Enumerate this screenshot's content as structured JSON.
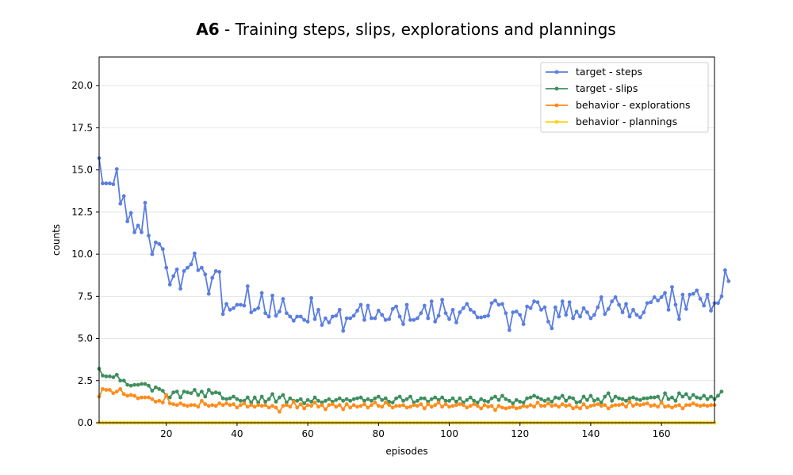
{
  "chart_data": {
    "type": "line",
    "title_bold": "A6",
    "title_rest": " - Training steps, slips, explorations and plannings",
    "xlabel": "episodes",
    "ylabel": "counts",
    "xlim": [
      1,
      175
    ],
    "ylim": [
      0,
      21.7
    ],
    "xticks": [
      20,
      40,
      60,
      80,
      100,
      120,
      140,
      160
    ],
    "yticks": [
      0,
      2.5,
      5,
      7.5,
      10,
      12.5,
      15,
      17.5,
      20
    ],
    "ytick_labels": [
      "0.0",
      "2.5",
      "5.0",
      "7.5",
      "10.0",
      "12.5",
      "15.0",
      "17.5",
      "20.0"
    ],
    "grid": "horizontal",
    "legend_position": "upper-right",
    "series": [
      {
        "name": "target - steps",
        "color": "#5b7ee0",
        "values": [
          15.7,
          14.2,
          14.2,
          14.2,
          14.15,
          15.05,
          13.0,
          13.45,
          11.95,
          12.45,
          11.3,
          11.7,
          11.3,
          13.05,
          11.1,
          10.0,
          10.7,
          10.6,
          10.3,
          9.2,
          8.2,
          8.7,
          9.1,
          7.95,
          9.0,
          9.2,
          9.4,
          10.05,
          9.05,
          9.2,
          8.8,
          7.65,
          8.6,
          9.0,
          8.95,
          6.45,
          7.05,
          6.7,
          6.8,
          7.0,
          7.0,
          6.95,
          8.1,
          6.55,
          6.7,
          6.8,
          7.7,
          6.5,
          6.3,
          7.55,
          6.35,
          6.6,
          7.35,
          6.5,
          6.3,
          6.05,
          6.3,
          6.3,
          6.1,
          6.0,
          7.4,
          6.15,
          6.7,
          5.8,
          6.2,
          5.95,
          6.3,
          6.35,
          6.7,
          5.45,
          6.2,
          6.2,
          6.35,
          6.65,
          7.0,
          6.1,
          6.95,
          6.2,
          6.2,
          6.65,
          6.4,
          6.1,
          6.15,
          6.75,
          6.9,
          6.3,
          5.85,
          7.0,
          6.1,
          6.1,
          6.2,
          6.5,
          6.95,
          6.2,
          7.2,
          6.0,
          6.35,
          7.3,
          6.5,
          6.15,
          6.7,
          5.95,
          6.55,
          6.8,
          7.05,
          6.7,
          6.55,
          6.25,
          6.25,
          6.3,
          6.35,
          7.1,
          7.25,
          7.0,
          7.05,
          6.5,
          5.5,
          6.55,
          6.6,
          6.4,
          5.85,
          6.9,
          6.8,
          7.2,
          7.15,
          6.7,
          6.85,
          6.0,
          5.6,
          6.85,
          6.3,
          7.2,
          6.4,
          7.15,
          6.2,
          6.6,
          6.3,
          6.8,
          6.55,
          6.2,
          6.4,
          6.85,
          7.45,
          6.45,
          6.75,
          7.2,
          7.45,
          7.0,
          6.55,
          7.05,
          6.3,
          6.7,
          6.4,
          6.25,
          6.55,
          7.1,
          7.15,
          7.45,
          7.25,
          7.45,
          7.7,
          6.7,
          8.05,
          7.0,
          6.15,
          7.6,
          6.75,
          7.6,
          7.65,
          7.85,
          7.35,
          6.95,
          7.6,
          6.65,
          7.1,
          7.1,
          7.5,
          9.05,
          8.4
        ]
      },
      {
        "name": "target - slips",
        "color": "#3e8f5e",
        "values": [
          3.2,
          2.8,
          2.75,
          2.75,
          2.7,
          2.85,
          2.5,
          2.5,
          2.25,
          2.2,
          2.25,
          2.25,
          2.3,
          2.3,
          2.2,
          1.9,
          2.1,
          2.0,
          1.9,
          1.6,
          1.5,
          1.8,
          1.85,
          1.5,
          1.85,
          1.8,
          1.75,
          1.95,
          1.65,
          1.85,
          1.55,
          1.95,
          1.75,
          1.8,
          1.75,
          1.45,
          1.4,
          1.45,
          1.55,
          1.4,
          1.3,
          1.3,
          1.5,
          1.2,
          1.5,
          1.2,
          1.55,
          1.25,
          1.4,
          1.7,
          1.25,
          1.5,
          1.65,
          1.2,
          1.45,
          1.3,
          1.3,
          1.4,
          1.15,
          1.35,
          1.25,
          1.5,
          1.3,
          1.2,
          1.3,
          1.4,
          1.25,
          1.35,
          1.45,
          1.3,
          1.4,
          1.3,
          1.4,
          1.45,
          1.5,
          1.3,
          1.4,
          1.3,
          1.45,
          1.55,
          1.35,
          1.45,
          1.25,
          1.2,
          1.45,
          1.55,
          1.3,
          1.4,
          1.55,
          1.2,
          1.3,
          1.45,
          1.45,
          1.25,
          1.4,
          1.5,
          1.35,
          1.5,
          1.3,
          1.3,
          1.45,
          1.25,
          1.45,
          1.2,
          1.35,
          1.5,
          1.3,
          1.2,
          1.4,
          1.3,
          1.25,
          1.45,
          1.55,
          1.35,
          1.6,
          1.4,
          1.3,
          1.15,
          1.35,
          1.25,
          1.2,
          1.45,
          1.5,
          1.6,
          1.5,
          1.4,
          1.3,
          1.4,
          1.25,
          1.5,
          1.45,
          1.6,
          1.3,
          1.5,
          1.45,
          1.2,
          1.25,
          1.55,
          1.35,
          1.6,
          1.3,
          1.4,
          1.2,
          1.55,
          1.75,
          1.3,
          1.55,
          1.45,
          1.4,
          1.3,
          1.45,
          1.5,
          1.4,
          1.35,
          1.45,
          1.45,
          1.5,
          1.5,
          1.55,
          1.2,
          1.75,
          1.4,
          1.5,
          1.3,
          1.75,
          1.55,
          1.7,
          1.45,
          1.65,
          1.5,
          1.45,
          1.6,
          1.4,
          1.55,
          1.4,
          1.6,
          1.85
        ]
      },
      {
        "name": "behavior - explorations",
        "color": "#ff8c1a",
        "values": [
          1.55,
          2.0,
          1.95,
          1.95,
          1.75,
          1.85,
          2.0,
          1.7,
          1.6,
          1.65,
          1.6,
          1.45,
          1.5,
          1.5,
          1.5,
          1.4,
          1.25,
          1.3,
          1.2,
          1.65,
          1.15,
          1.1,
          1.05,
          1.15,
          1.05,
          1.0,
          1.05,
          1.05,
          0.95,
          1.3,
          1.1,
          1.0,
          1.05,
          1.0,
          1.15,
          1.05,
          1.15,
          1.05,
          1.1,
          0.9,
          1.05,
          1.15,
          0.95,
          1.05,
          0.95,
          1.05,
          1.0,
          1.05,
          0.9,
          1.0,
          0.9,
          0.65,
          1.0,
          1.05,
          0.95,
          1.25,
          0.9,
          1.1,
          0.85,
          1.05,
          1.0,
          1.2,
          0.95,
          1.05,
          0.8,
          1.05,
          1.1,
          0.95,
          1.05,
          0.8,
          1.1,
          0.9,
          1.05,
          0.95,
          1.0,
          1.1,
          0.9,
          1.05,
          1.2,
          1.0,
          0.95,
          1.2,
          1.05,
          0.9,
          1.0,
          1.0,
          1.05,
          0.9,
          0.95,
          1.05,
          1.0,
          1.1,
          0.85,
          1.1,
          0.95,
          1.05,
          1.2,
          0.95,
          1.1,
          0.95,
          1.0,
          1.05,
          1.1,
          1.05,
          0.9,
          1.0,
          1.1,
          1.0,
          0.85,
          1.05,
          0.95,
          1.0,
          0.75,
          1.0,
          0.9,
          0.85,
          0.9,
          0.95,
          0.85,
          0.9,
          1.0,
          0.95,
          1.05,
          0.95,
          1.2,
          1.0,
          1.0,
          1.15,
          1.0,
          1.05,
          0.95,
          1.1,
          1.0,
          1.05,
          0.85,
          0.95,
          0.85,
          1.1,
          0.9,
          1.0,
          1.05,
          1.1,
          1.0,
          1.05,
          0.85,
          1.0,
          1.05,
          1.05,
          1.1,
          0.95,
          1.25,
          1.0,
          1.1,
          1.05,
          1.1,
          1.15,
          1.0,
          1.05,
          0.95,
          1.2,
          0.95,
          1.0,
          0.9,
          1.0,
          1.05,
          0.85,
          1.05,
          1.05,
          1.15,
          1.05,
          1.0,
          1.05,
          1.0,
          1.05,
          1.05
        ]
      },
      {
        "name": "behavior - plannings",
        "color": "#ffd21a",
        "values": [
          0,
          0,
          0,
          0,
          0,
          0,
          0,
          0,
          0,
          0,
          0,
          0,
          0,
          0,
          0,
          0,
          0,
          0,
          0,
          0,
          0,
          0,
          0,
          0,
          0,
          0,
          0,
          0,
          0,
          0,
          0,
          0,
          0,
          0,
          0,
          0,
          0,
          0,
          0,
          0,
          0,
          0,
          0,
          0,
          0,
          0,
          0,
          0,
          0,
          0,
          0,
          0,
          0,
          0,
          0,
          0,
          0,
          0,
          0,
          0,
          0,
          0,
          0,
          0,
          0,
          0,
          0,
          0,
          0,
          0,
          0,
          0,
          0,
          0,
          0,
          0,
          0,
          0,
          0,
          0,
          0,
          0,
          0,
          0,
          0,
          0,
          0,
          0,
          0,
          0,
          0,
          0,
          0,
          0,
          0,
          0,
          0,
          0,
          0,
          0,
          0,
          0,
          0,
          0,
          0,
          0,
          0,
          0,
          0,
          0,
          0,
          0,
          0,
          0,
          0,
          0,
          0,
          0,
          0,
          0,
          0,
          0,
          0,
          0,
          0,
          0,
          0,
          0,
          0,
          0,
          0,
          0,
          0,
          0,
          0,
          0,
          0,
          0,
          0,
          0,
          0,
          0,
          0,
          0,
          0,
          0,
          0,
          0,
          0,
          0,
          0,
          0,
          0,
          0,
          0,
          0,
          0,
          0,
          0,
          0,
          0,
          0,
          0,
          0,
          0,
          0,
          0,
          0,
          0,
          0,
          0,
          0,
          0,
          0,
          0
        ]
      }
    ]
  }
}
